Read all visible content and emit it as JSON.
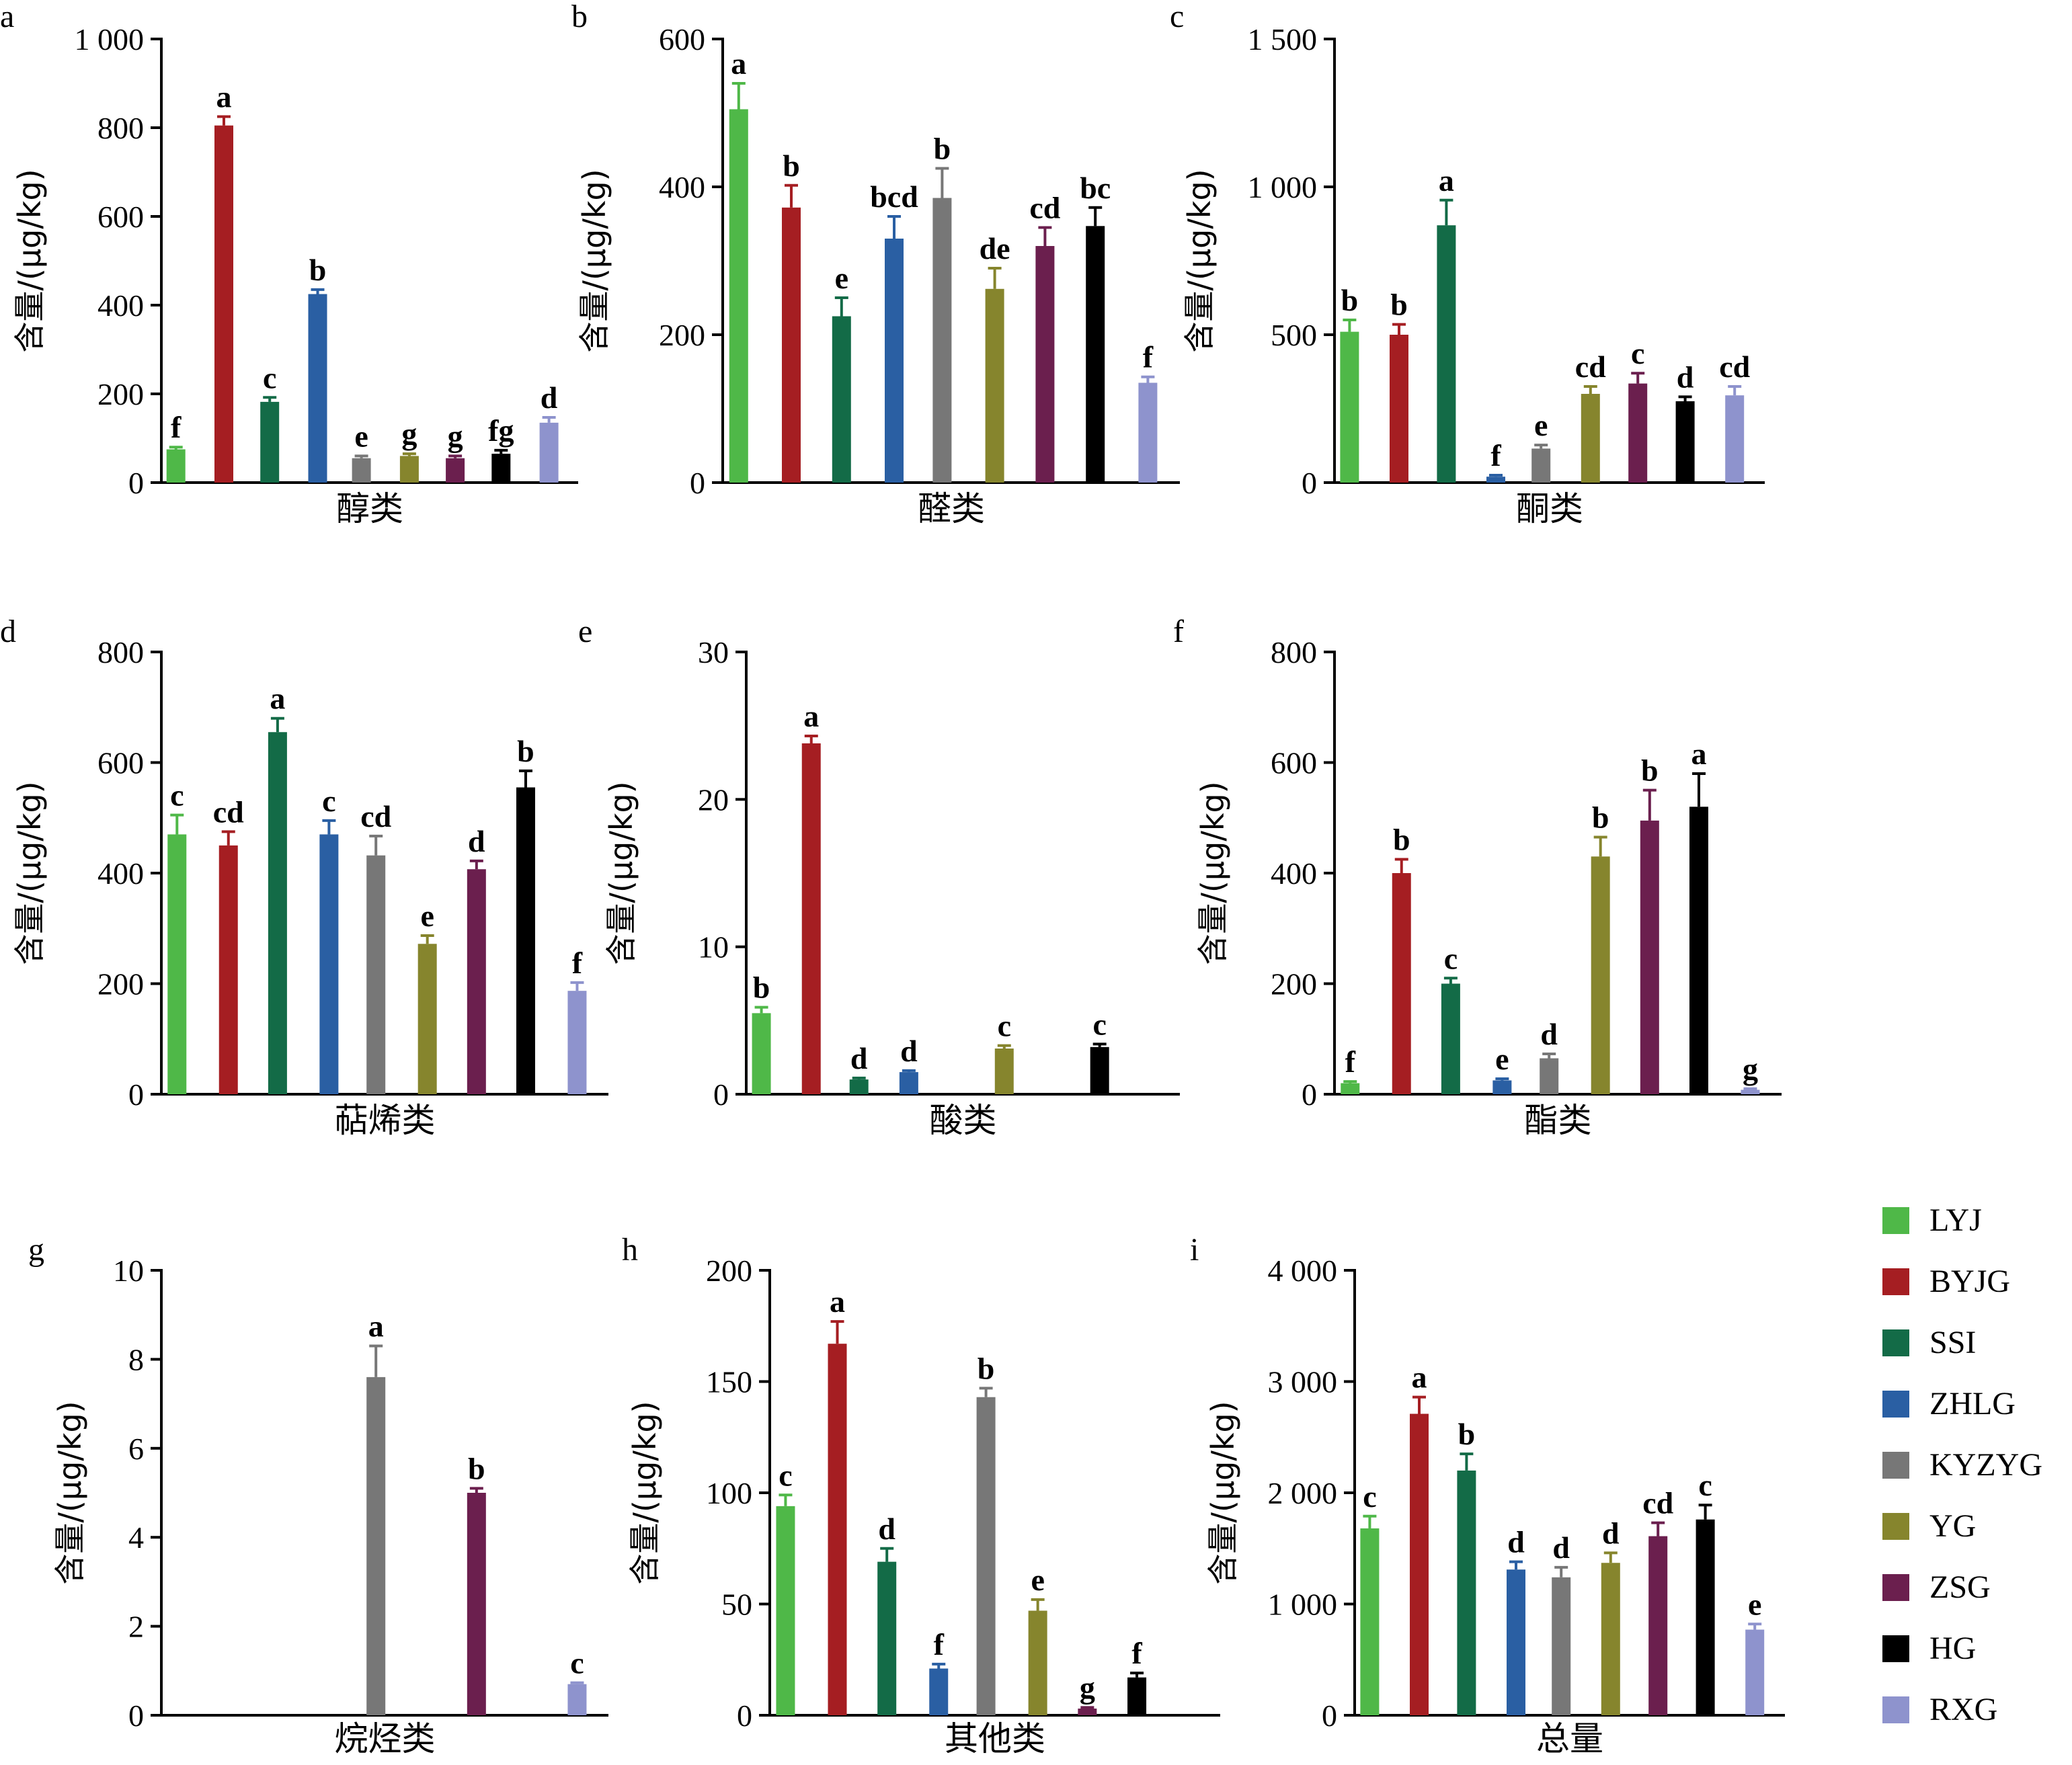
{
  "series": [
    {
      "name": "LYJ",
      "color": "#4fb848"
    },
    {
      "name": "BYJG",
      "color": "#a51e22"
    },
    {
      "name": "SSI",
      "color": "#136b47"
    },
    {
      "name": "ZHLG",
      "color": "#2a5fa3"
    },
    {
      "name": "KYZYG",
      "color": "#777777"
    },
    {
      "name": "YG",
      "color": "#86852d"
    },
    {
      "name": "ZSG",
      "color": "#6b1f4e"
    },
    {
      "name": "HG",
      "color": "#000000"
    },
    {
      "name": "RXG",
      "color": "#8e93cd"
    }
  ],
  "chart_data": [
    {
      "panel": "a",
      "type": "bar",
      "xlabel": "醇类",
      "ylabel": "含量/(μg/kg)",
      "ylim": [
        0,
        1000
      ],
      "yticks": [
        0,
        200,
        400,
        600,
        800,
        1000
      ],
      "ytick_labels": [
        "0",
        "200",
        "400",
        "600",
        "800",
        "1 000"
      ],
      "values": [
        75,
        805,
        182,
        425,
        55,
        60,
        55,
        65,
        135
      ],
      "errors": [
        5,
        20,
        10,
        10,
        5,
        5,
        5,
        8,
        12
      ],
      "letters": [
        "f",
        "a",
        "c",
        "b",
        "e",
        "g",
        "g",
        "fg",
        "d"
      ]
    },
    {
      "panel": "b",
      "type": "bar",
      "xlabel": "醛类",
      "ylabel": "含量/(μg/kg)",
      "ylim": [
        0,
        600
      ],
      "yticks": [
        0,
        200,
        400,
        600
      ],
      "ytick_labels": [
        "0",
        "200",
        "400",
        "600"
      ],
      "values": [
        505,
        372,
        225,
        330,
        385,
        262,
        320,
        347,
        135
      ],
      "errors": [
        35,
        30,
        25,
        30,
        40,
        28,
        25,
        25,
        8
      ],
      "letters": [
        "a",
        "b",
        "e",
        "bcd",
        "b",
        "de",
        "cd",
        "bc",
        "f"
      ]
    },
    {
      "panel": "c",
      "type": "bar",
      "xlabel": "酮类",
      "ylabel": "含量/(μg/kg)",
      "ylim": [
        0,
        1500
      ],
      "yticks": [
        0,
        500,
        1000,
        1500
      ],
      "ytick_labels": [
        "0",
        "500",
        "1 000",
        "1 500"
      ],
      "values": [
        510,
        500,
        870,
        20,
        115,
        300,
        335,
        275,
        295
      ],
      "errors": [
        40,
        35,
        85,
        5,
        12,
        25,
        35,
        15,
        30
      ],
      "letters": [
        "b",
        "b",
        "a",
        "f",
        "e",
        "cd",
        "c",
        "d",
        "cd"
      ]
    },
    {
      "panel": "d",
      "type": "bar",
      "xlabel": "萜烯类",
      "ylabel": "含量/(μg/kg)",
      "ylim": [
        0,
        800
      ],
      "yticks": [
        0,
        200,
        400,
        600,
        800
      ],
      "ytick_labels": [
        "0",
        "200",
        "400",
        "600",
        "800"
      ],
      "values": [
        470,
        450,
        655,
        470,
        432,
        272,
        407,
        555,
        187
      ],
      "errors": [
        35,
        25,
        25,
        25,
        35,
        15,
        15,
        30,
        15
      ],
      "letters": [
        "c",
        "cd",
        "a",
        "c",
        "cd",
        "e",
        "d",
        "b",
        "f"
      ]
    },
    {
      "panel": "e",
      "type": "bar",
      "xlabel": "酸类",
      "ylabel": "含量/(μg/kg)",
      "ylim": [
        0,
        30
      ],
      "yticks": [
        0,
        10,
        20,
        30
      ],
      "ytick_labels": [
        "0",
        "10",
        "20",
        "30"
      ],
      "values": [
        5.5,
        23.8,
        1.0,
        1.5,
        null,
        3.1,
        null,
        3.2,
        null
      ],
      "errors": [
        0.4,
        0.5,
        0.1,
        0.1,
        null,
        0.2,
        null,
        0.2,
        null
      ],
      "letters": [
        "b",
        "a",
        "d",
        "d",
        "",
        "c",
        "",
        "c",
        ""
      ]
    },
    {
      "panel": "f",
      "type": "bar",
      "xlabel": "酯类",
      "ylabel": "含量/(μg/kg)",
      "ylim": [
        0,
        800
      ],
      "yticks": [
        0,
        200,
        400,
        600,
        800
      ],
      "ytick_labels": [
        "0",
        "200",
        "400",
        "600",
        "800"
      ],
      "values": [
        20,
        400,
        200,
        25,
        65,
        430,
        495,
        520,
        8
      ],
      "errors": [
        3,
        25,
        10,
        3,
        8,
        35,
        55,
        60,
        2
      ],
      "letters": [
        "f",
        "b",
        "c",
        "e",
        "d",
        "b",
        "b",
        "a",
        "g"
      ]
    },
    {
      "panel": "g",
      "type": "bar",
      "xlabel": "烷烃类",
      "ylabel": "含量/(μg/kg)",
      "ylim": [
        0,
        10
      ],
      "yticks": [
        0,
        2,
        4,
        6,
        8,
        10
      ],
      "ytick_labels": [
        "0",
        "2",
        "4",
        "6",
        "8",
        "10"
      ],
      "values": [
        null,
        null,
        null,
        null,
        7.6,
        null,
        5.0,
        null,
        0.7
      ],
      "errors": [
        null,
        null,
        null,
        null,
        0.7,
        null,
        0.1,
        null,
        0.03
      ],
      "letters": [
        "",
        "",
        "",
        "",
        "a",
        "",
        "b",
        "",
        "c"
      ]
    },
    {
      "panel": "h",
      "type": "bar",
      "xlabel": "其他类",
      "ylabel": "含量/(μg/kg)",
      "ylim": [
        0,
        200
      ],
      "yticks": [
        0,
        50,
        100,
        150,
        200
      ],
      "ytick_labels": [
        "0",
        "50",
        "100",
        "150",
        "200"
      ],
      "values": [
        94,
        167,
        69,
        21,
        143,
        47,
        3,
        17,
        null
      ],
      "errors": [
        5,
        10,
        6,
        2,
        4,
        5,
        0.5,
        2,
        null
      ],
      "letters": [
        "c",
        "a",
        "d",
        "f",
        "b",
        "e",
        "g",
        "f",
        ""
      ]
    },
    {
      "panel": "i",
      "type": "bar",
      "xlabel": "总量",
      "ylabel": "含量/(μg/kg)",
      "ylim": [
        0,
        4000
      ],
      "yticks": [
        0,
        1000,
        2000,
        3000,
        4000
      ],
      "ytick_labels": [
        "0",
        "1 000",
        "2 000",
        "3 000",
        "4 000"
      ],
      "values": [
        1680,
        2710,
        2200,
        1310,
        1240,
        1370,
        1610,
        1760,
        770
      ],
      "errors": [
        110,
        150,
        150,
        70,
        90,
        90,
        120,
        130,
        50
      ],
      "letters": [
        "c",
        "a",
        "b",
        "d",
        "d",
        "d",
        "cd",
        "c",
        "e"
      ]
    }
  ]
}
